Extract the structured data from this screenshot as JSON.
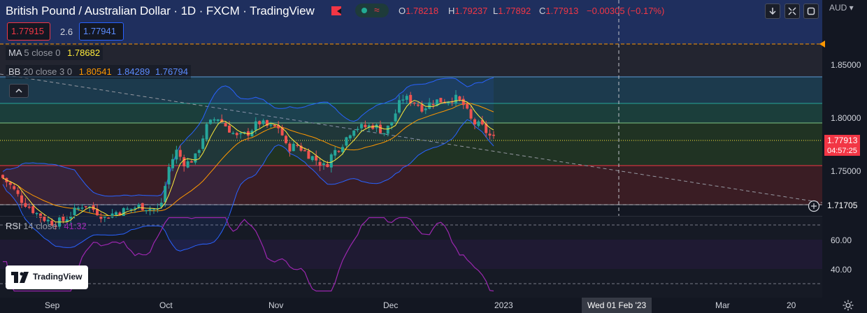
{
  "header": {
    "title": "British Pound / Australian Dollar · 1D · FXCM · TradingView",
    "ohlc": {
      "o_label": "O",
      "o_value": "1.78218",
      "h_label": "H",
      "h_value": "1.79237",
      "l_label": "L",
      "l_value": "1.77892",
      "c_label": "C",
      "c_value": "1.77913",
      "change": "−0.00305 (−0.17%)"
    },
    "currency": "AUD",
    "buttons": {
      "arrow_icon": "arrow-down-icon",
      "cross_icon": "collapse-arrows-icon",
      "window_icon": "window-icon"
    }
  },
  "trade": {
    "bid": "1.77915",
    "spread": "2.6",
    "ask": "1.77941"
  },
  "indicators": {
    "ma": {
      "name": "MA",
      "params": "5 close 0",
      "value": "1.78682",
      "color": "#ffeb3b"
    },
    "bb": {
      "name": "BB",
      "params": "20 close 3 0",
      "basis": "1.80541",
      "upper": "1.84289",
      "lower": "1.76794",
      "basis_color": "#ff9800",
      "band_color": "#2962ff"
    },
    "rsi": {
      "name": "RSI",
      "params": "14 close",
      "value": "41.32",
      "color": "#9c27b0"
    }
  },
  "price_axis": {
    "labels": [
      "1.85000",
      "1.80000",
      "1.75000"
    ],
    "last_price": "1.77913",
    "countdown": "04:57:25",
    "crosshair_price": "1.71705"
  },
  "rsi_axis": {
    "labels": [
      "60.00",
      "40.00"
    ]
  },
  "time_axis": {
    "labels": [
      "Sep",
      "Oct",
      "Nov",
      "Dec",
      "2023",
      "Mar",
      "20"
    ],
    "crosshair_date": "Wed 01 Feb '23"
  },
  "logo": {
    "text": "TradingView"
  },
  "colors": {
    "up": "#26a69a",
    "down": "#ef5350",
    "background": "#131722"
  },
  "chart_data": [
    {
      "type": "candlestick",
      "title": "British Pound / Australian Dollar · 1D · FXCM",
      "x_range": [
        "Aug 2022",
        "Mar 2023"
      ],
      "ylim": [
        1.7,
        1.88
      ],
      "grid": false,
      "series_summary": [
        {
          "period": "Oct",
          "close": 1.76
        },
        {
          "period": "mid-Oct",
          "close": 1.795
        },
        {
          "period": "early Nov",
          "close": 1.775
        },
        {
          "period": "mid-Nov",
          "close": 1.755
        },
        {
          "period": "late Nov",
          "close": 1.79
        },
        {
          "period": "mid-Dec",
          "close": 1.815
        },
        {
          "period": "late Dec",
          "close": 1.779
        }
      ]
    },
    {
      "type": "line",
      "ylim": [
        30,
        70
      ],
      "series_summary": [
        {
          "period": "Sep",
          "value": 30
        },
        {
          "period": "Oct",
          "value": 68
        },
        {
          "period": "Nov",
          "value": 62
        },
        {
          "period": "Dec",
          "value": 66
        },
        {
          "period": "late Dec",
          "value": 41.32
        }
      ]
    }
  ]
}
